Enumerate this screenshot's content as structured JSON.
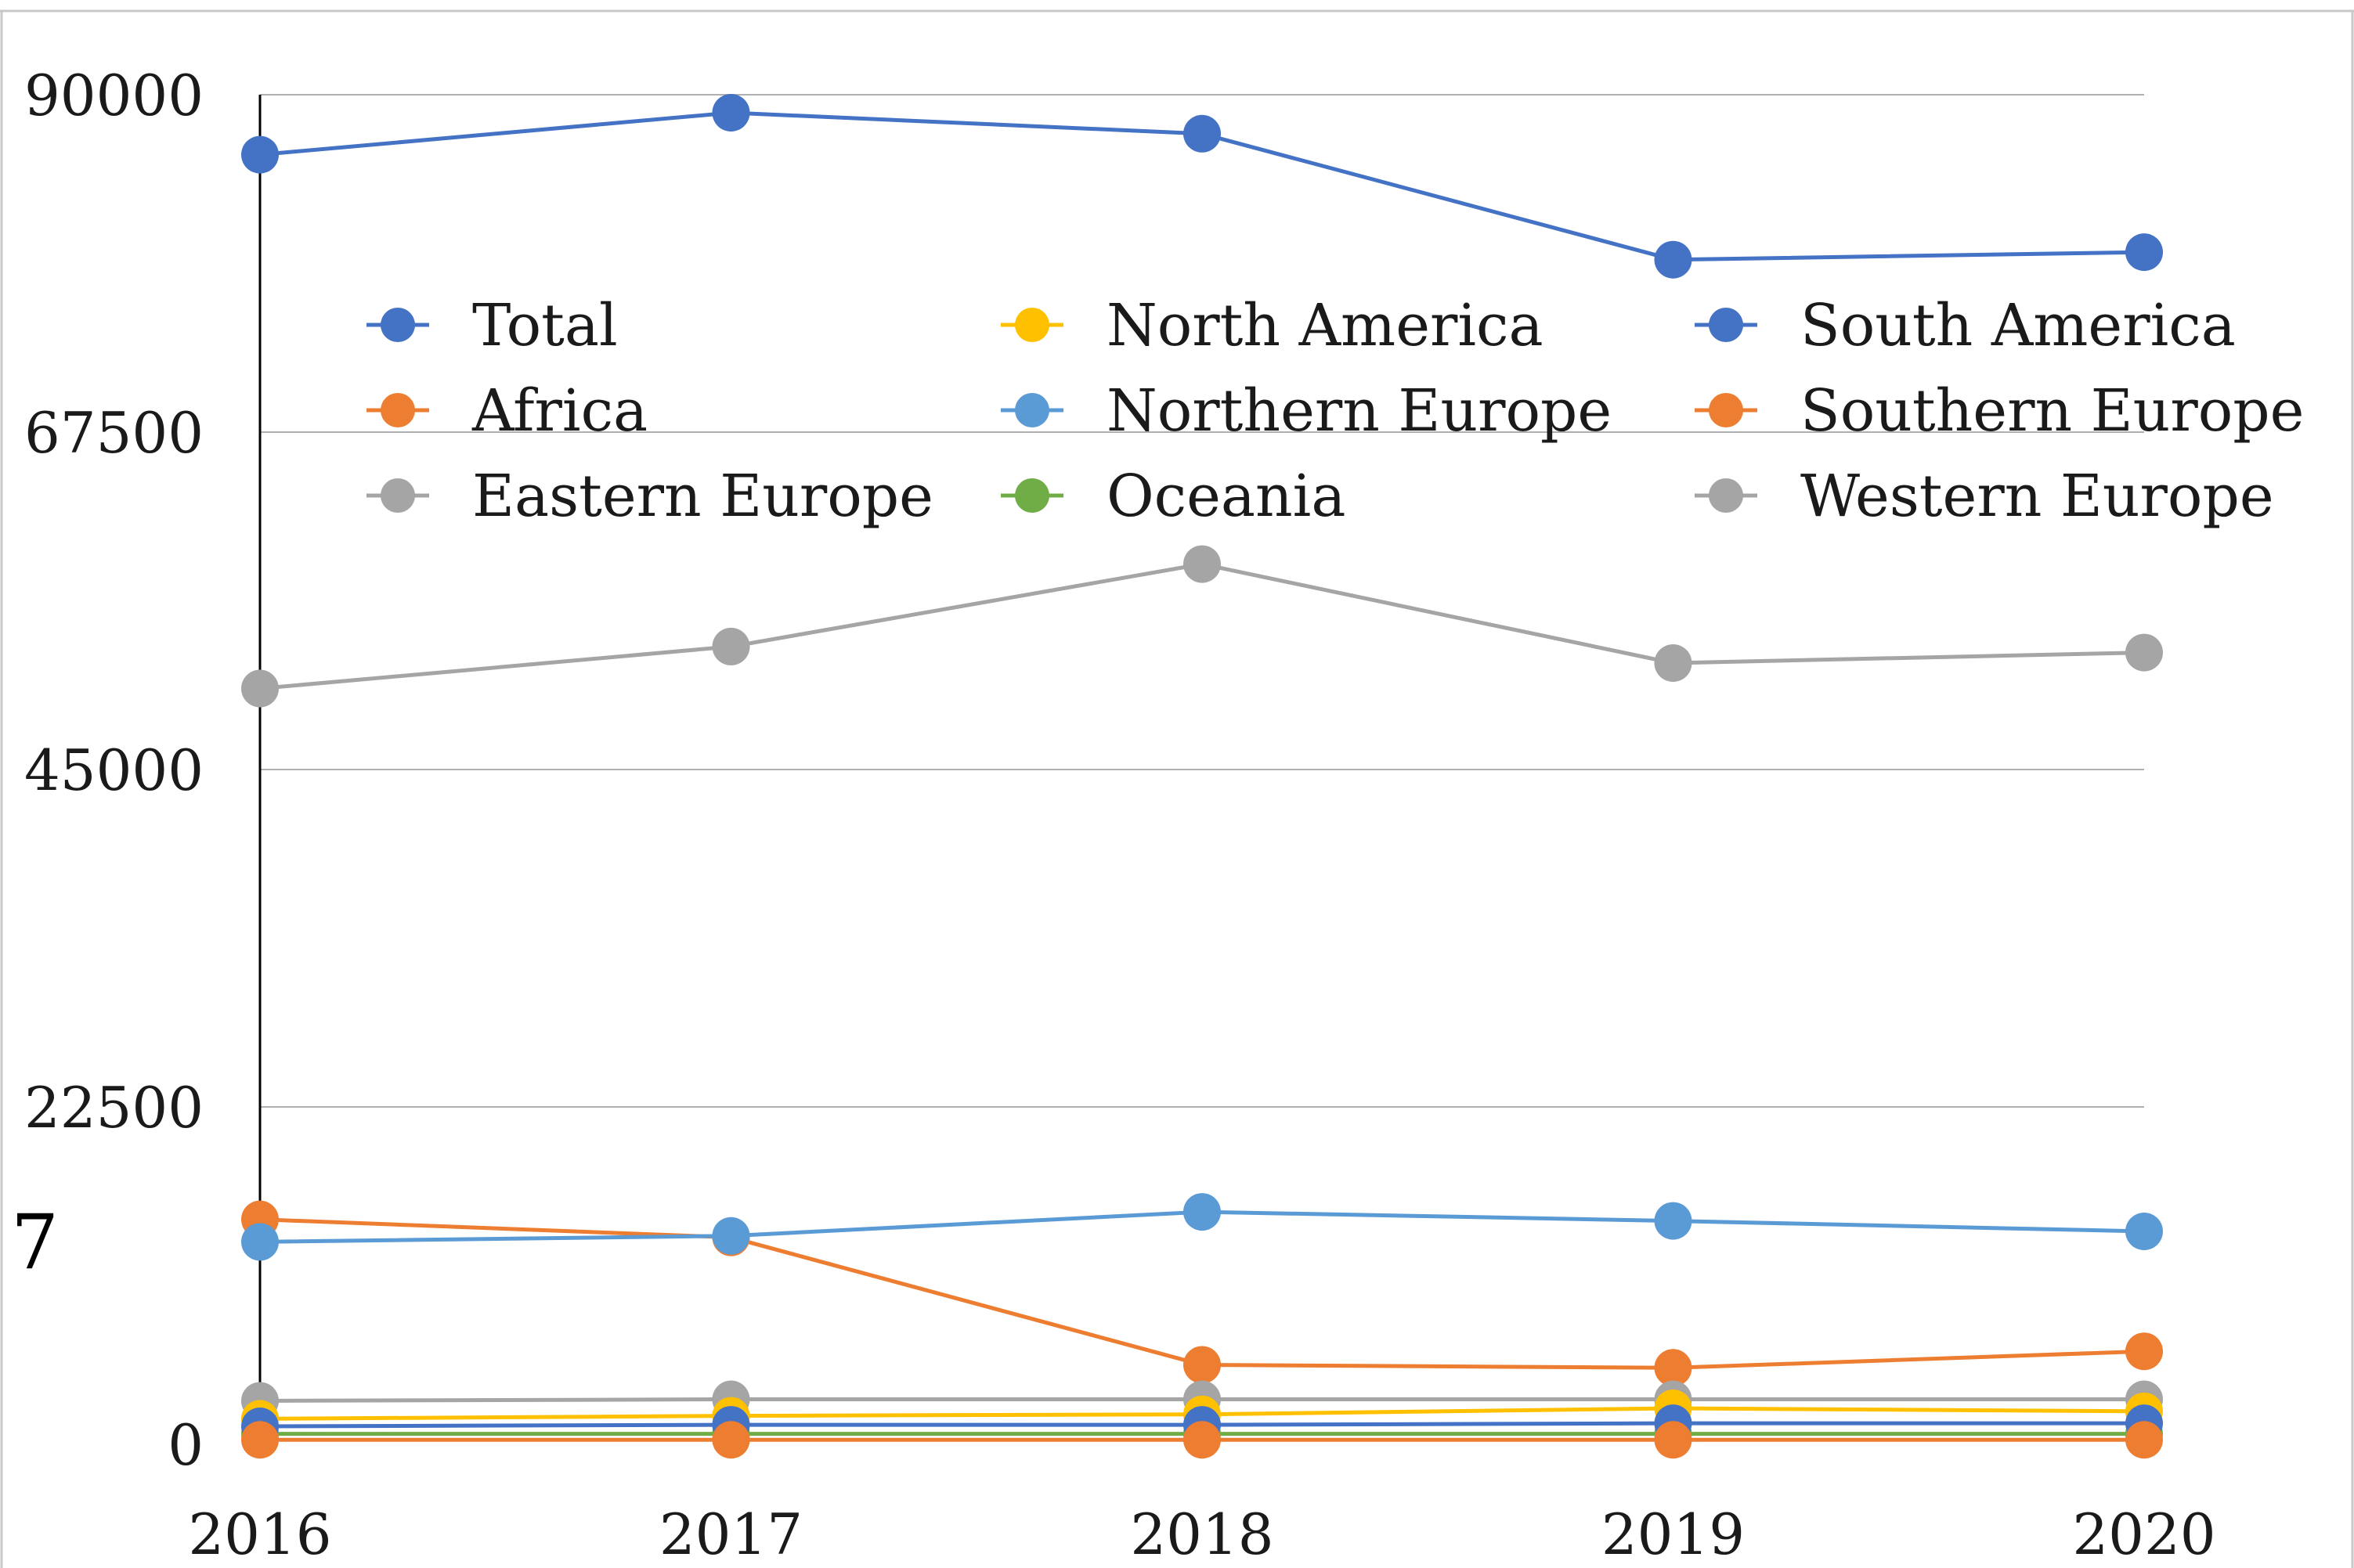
{
  "chart_data": {
    "type": "line",
    "title": "",
    "xlabel": "",
    "ylabel": "",
    "x": [
      "2016",
      "2017",
      "2018",
      "2019",
      "2020"
    ],
    "ylim": [
      0,
      90000
    ],
    "y_ticks": [
      "90000",
      "67500",
      "45000",
      "22500",
      "0"
    ],
    "y_tick_values": [
      90000,
      67500,
      45000,
      22500,
      0
    ],
    "grid": true,
    "legend_position": "top-center, inside plot",
    "stray_mark": "7",
    "series": [
      {
        "name": "Total",
        "color": "#4472C4",
        "values": [
          86000,
          88800,
          87400,
          79000,
          79500
        ]
      },
      {
        "name": "Africa",
        "color": "#ED7D31",
        "values": [
          15000,
          13800,
          5300,
          5100,
          6200
        ]
      },
      {
        "name": "Eastern Europe",
        "color": "#A5A5A5",
        "values": [
          2900,
          3000,
          3000,
          3000,
          3000
        ]
      },
      {
        "name": "North America",
        "color": "#FFC000",
        "values": [
          1700,
          1900,
          2000,
          2400,
          2200
        ]
      },
      {
        "name": "Northern Europe",
        "color": "#5B9BD5",
        "values": [
          13500,
          13900,
          15500,
          14900,
          14200
        ]
      },
      {
        "name": "Oceania",
        "color": "#70AD47",
        "values": [
          700,
          700,
          700,
          700,
          700
        ]
      },
      {
        "name": "South America",
        "color": "#4472C4",
        "values": [
          1200,
          1300,
          1300,
          1400,
          1400
        ]
      },
      {
        "name": "Southern Europe",
        "color": "#ED7D31",
        "values": [
          300,
          300,
          300,
          300,
          300
        ]
      },
      {
        "name": "Western Europe",
        "color": "#A5A5A5",
        "values": [
          50400,
          53200,
          58700,
          52100,
          52800
        ]
      }
    ]
  }
}
